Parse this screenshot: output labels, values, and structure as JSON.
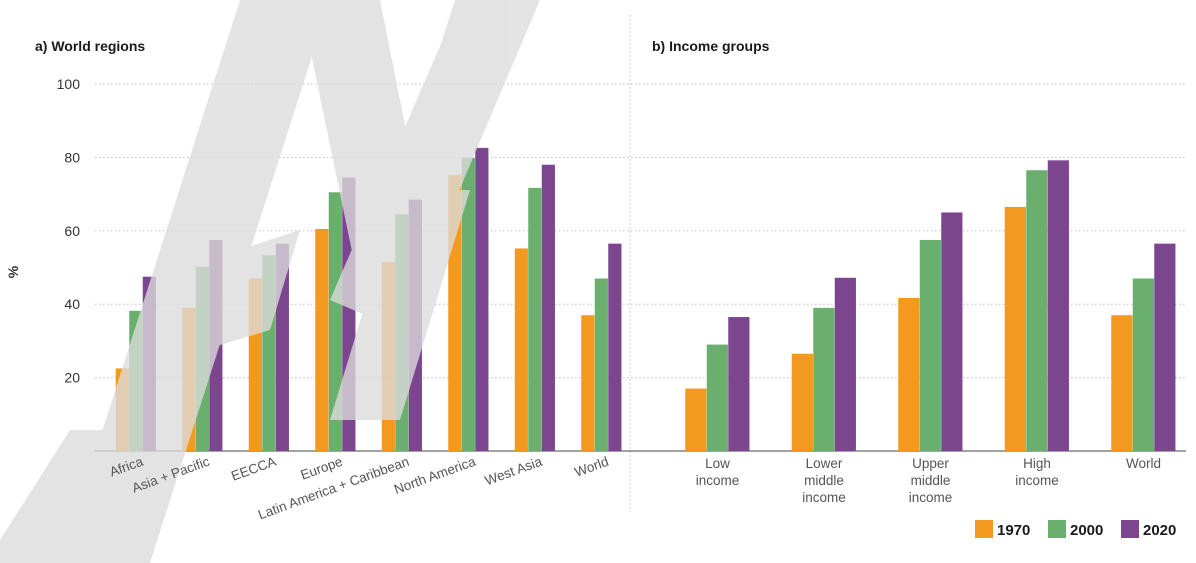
{
  "chart_data": {
    "type": "bar",
    "ylabel": "%",
    "ylim": [
      0,
      100
    ],
    "yticks": [
      20,
      40,
      60,
      80,
      100
    ],
    "legend": {
      "placement": "bottom-right"
    },
    "series_names": [
      "1970",
      "2000",
      "2020"
    ],
    "colors": [
      "#F39A1E",
      "#6AAF6E",
      "#7C468F"
    ],
    "watermark": "WIDER",
    "panels": [
      {
        "title": "a) World regions",
        "categories": [
          "Africa",
          "Asia + Pacific",
          "EECCA",
          "Europe",
          "Latin America + Caribbean",
          "North America",
          "West Asia",
          "World"
        ],
        "series": [
          {
            "name": "1970",
            "values": [
              22.5,
              39,
              47,
              60.5,
              51.5,
              75.2,
              55.2,
              37
            ]
          },
          {
            "name": "2000",
            "values": [
              38.2,
              50.2,
              53.3,
              70.5,
              64.5,
              79.9,
              71.7,
              47
            ]
          },
          {
            "name": "2020",
            "values": [
              47.5,
              57.5,
              56.5,
              74.5,
              68.5,
              82.6,
              78,
              56.5
            ]
          }
        ]
      },
      {
        "title": "b) Income groups",
        "categories": [
          "Low\nincome",
          "Lower\nmiddle\nincome",
          "Upper\nmiddle\nincome",
          "High\nincome",
          "World"
        ],
        "series": [
          {
            "name": "1970",
            "values": [
              17,
              26.5,
              41.7,
              66.5,
              37
            ]
          },
          {
            "name": "2000",
            "values": [
              29,
              39,
              57.5,
              76.5,
              47
            ]
          },
          {
            "name": "2020",
            "values": [
              36.5,
              47.2,
              65,
              79.2,
              56.5
            ]
          }
        ]
      }
    ]
  }
}
